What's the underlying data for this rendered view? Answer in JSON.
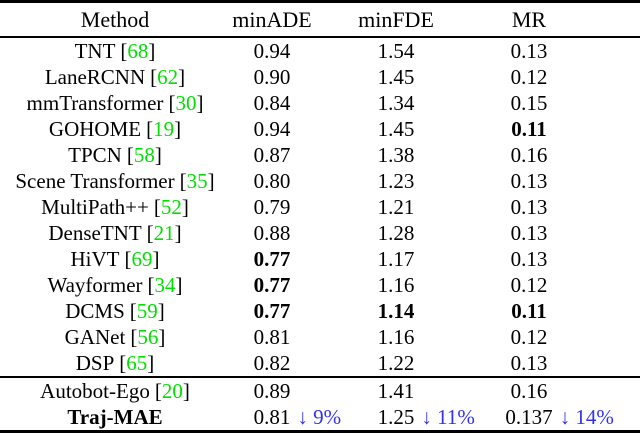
{
  "punct": {
    "open": "[",
    "close": "]"
  },
  "colors": {
    "citation_green": "#00e000",
    "delta_blue": "#3232f0",
    "text": "#000000",
    "background": "#ffffff"
  },
  "table": {
    "columns": [
      "Method",
      "minADE",
      "minFDE",
      "MR"
    ],
    "rows": [
      {
        "method": "TNT",
        "cite": "68",
        "minade": "0.94",
        "minfde": "1.54",
        "mr": "0.13"
      },
      {
        "method": "LaneRCNN",
        "cite": "62",
        "minade": "0.90",
        "minfde": "1.45",
        "mr": "0.12"
      },
      {
        "method": "mmTransformer",
        "cite": "30",
        "minade": "0.84",
        "minfde": "1.34",
        "mr": "0.15"
      },
      {
        "method": "GOHOME",
        "cite": "19",
        "minade": "0.94",
        "minfde": "1.45",
        "mr": "0.11"
      },
      {
        "method": "TPCN",
        "cite": "58",
        "minade": "0.87",
        "minfde": "1.38",
        "mr": "0.16"
      },
      {
        "method": "Scene Transformer",
        "cite": "35",
        "minade": "0.80",
        "minfde": "1.23",
        "mr": "0.13"
      },
      {
        "method": "MultiPath++",
        "cite": "52",
        "minade": "0.79",
        "minfde": "1.21",
        "mr": "0.13"
      },
      {
        "method": "DenseTNT",
        "cite": "21",
        "minade": "0.88",
        "minfde": "1.28",
        "mr": "0.13"
      },
      {
        "method": "HiVT",
        "cite": "69",
        "minade": "0.77",
        "minfde": "1.17",
        "mr": "0.13"
      },
      {
        "method": "Wayformer",
        "cite": "34",
        "minade": "0.77",
        "minfde": "1.16",
        "mr": "0.12"
      },
      {
        "method": "DCMS",
        "cite": "59",
        "minade": "0.77",
        "minfde": "1.14",
        "mr": "0.11"
      },
      {
        "method": "GANet",
        "cite": "56",
        "minade": "0.81",
        "minfde": "1.16",
        "mr": "0.12"
      },
      {
        "method": "DSP",
        "cite": "65",
        "minade": "0.82",
        "minfde": "1.22",
        "mr": "0.13"
      },
      {
        "method": "Autobot-Ego",
        "cite": "20",
        "minade": "0.89",
        "minfde": "1.41",
        "mr": "0.16"
      },
      {
        "method": "Traj-MAE",
        "minade": "0.81",
        "minade_delta": "↓ 9%",
        "minfde": "1.25",
        "minfde_delta": "↓ 11%",
        "mr": "0.137",
        "mr_delta": "↓ 14%"
      }
    ]
  }
}
